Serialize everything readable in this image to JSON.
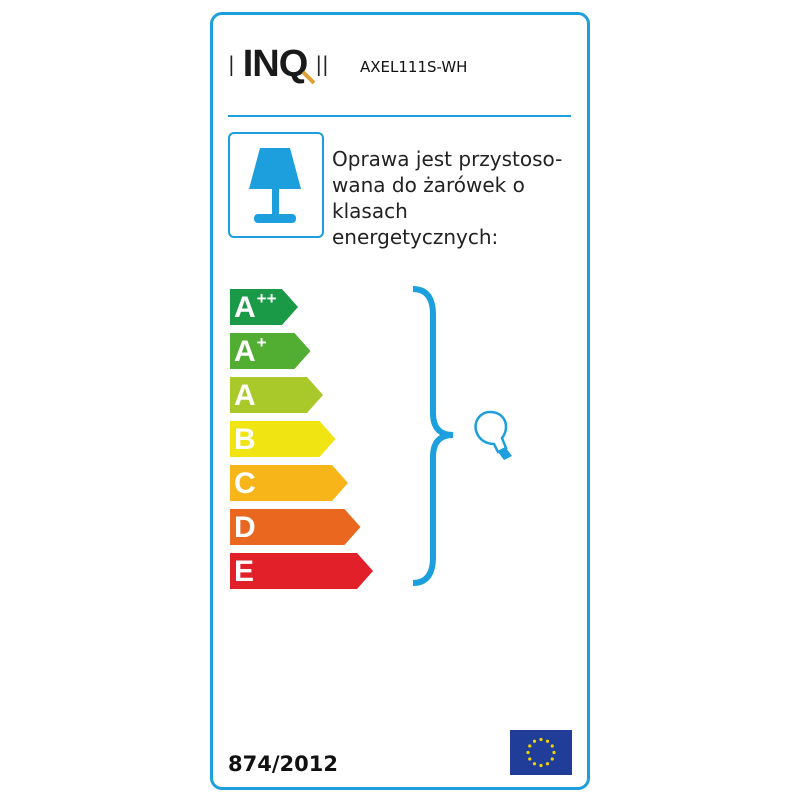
{
  "brand": {
    "logo_text": "INQ",
    "model": "AXEL111S-WH"
  },
  "description": "Oprawa jest przystoso-\nwana do żarówek o\nklasach\nenergetycznych:",
  "description_lines": [
    "Oprawa jest przystoso-",
    "wana do żarówek o",
    "klasach",
    "energetycznych:"
  ],
  "energy_classes": [
    {
      "letter": "A",
      "sup": "++",
      "color": "#1a9a47"
    },
    {
      "letter": "A",
      "sup": "+",
      "color": "#52ae32"
    },
    {
      "letter": "A",
      "sup": "",
      "color": "#a9c92a"
    },
    {
      "letter": "B",
      "sup": "",
      "color": "#f0e412"
    },
    {
      "letter": "C",
      "sup": "",
      "color": "#f8b51a"
    },
    {
      "letter": "D",
      "sup": "",
      "color": "#e9671f"
    },
    {
      "letter": "E",
      "sup": "",
      "color": "#e2202a"
    }
  ],
  "regulation": "874/2012",
  "colors": {
    "accent": "#1c9fdc",
    "eu_blue": "#1f3d99",
    "eu_star": "#f6d300"
  },
  "icons": [
    "table-lamp-icon",
    "light-bulb-icon",
    "curly-brace",
    "eu-flag"
  ]
}
